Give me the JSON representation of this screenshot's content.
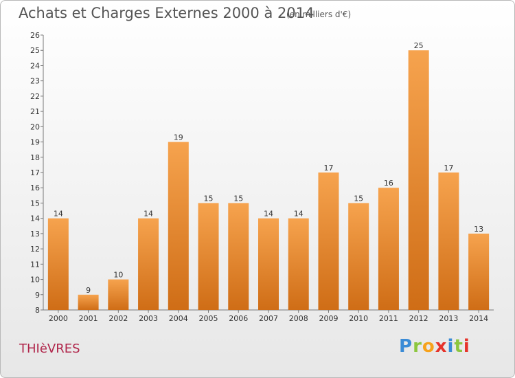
{
  "header": {
    "title": "Achats et Charges Externes 2000 à 2014",
    "unit": "(en milliers d'€)"
  },
  "footer": {
    "town": "THIèVRES",
    "logo": [
      "P",
      "r",
      "o",
      "x",
      "i",
      "t",
      "i"
    ]
  },
  "chart_data": {
    "type": "bar",
    "title": "Achats et Charges Externes 2000 à 2014",
    "subtitle": "(en milliers d'€)",
    "xlabel": "",
    "ylabel": "",
    "categories": [
      "2000",
      "2001",
      "2002",
      "2003",
      "2004",
      "2005",
      "2006",
      "2007",
      "2008",
      "2009",
      "2010",
      "2011",
      "2012",
      "2013",
      "2014"
    ],
    "values": [
      14,
      9,
      10,
      14,
      19,
      15,
      15,
      14,
      14,
      17,
      15,
      16,
      25,
      17,
      13
    ],
    "value_labels": [
      "14",
      "9",
      "10",
      "14",
      "19",
      "15",
      "15",
      "14",
      "14",
      "17",
      "15",
      "16",
      "25",
      "17",
      "13"
    ],
    "ylim": [
      8,
      26
    ],
    "yticks": [
      "8",
      "9",
      "10",
      "11",
      "12",
      "13",
      "14",
      "15",
      "16",
      "17",
      "18",
      "19",
      "20",
      "21",
      "22",
      "23",
      "24",
      "25",
      "26"
    ],
    "grid": false,
    "legend": "none",
    "colors": {
      "bar_top": "#f6a34e",
      "bar_bottom": "#cf6d16",
      "axis": "#777777"
    }
  }
}
